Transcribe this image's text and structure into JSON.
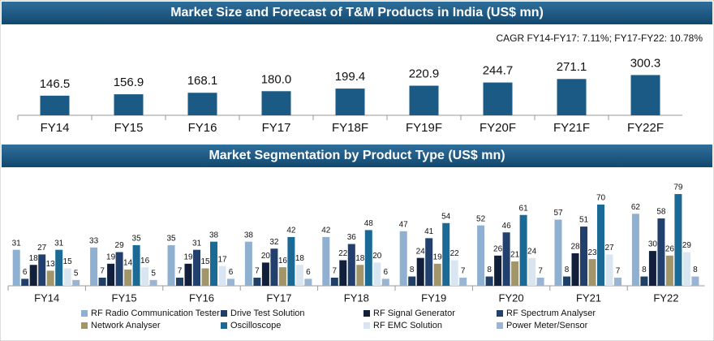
{
  "chart_data": [
    {
      "type": "bar",
      "title": "Market Size and Forecast of T&M Products in India (US$ mn)",
      "subtitle": "CAGR FY14-FY17: 7.11%; FY17-FY22: 10.78%",
      "categories": [
        "FY14",
        "FY15",
        "FY16",
        "FY17",
        "FY18F",
        "FY19F",
        "FY20F",
        "FY21F",
        "FY22F"
      ],
      "values": [
        146.5,
        156.9,
        168.1,
        180.0,
        199.4,
        220.9,
        244.7,
        271.1,
        300.3
      ],
      "value_labels": [
        "146.5",
        "156.9",
        "168.1",
        "180.0",
        "199.4",
        "220.9",
        "244.7",
        "271.1",
        "300.3"
      ],
      "color": "#1a5a85"
    },
    {
      "type": "grouped_bar",
      "title": "Market Segmentation by Product Type (US$ mn)",
      "categories": [
        "FY14",
        "FY15",
        "FY16",
        "FY17",
        "FY18",
        "FY19",
        "FY20",
        "FY21",
        "FY22"
      ],
      "series": [
        {
          "name": "RF Radio Communication Tester",
          "color": "#8fb0d0",
          "values": [
            31,
            33,
            35,
            38,
            42,
            47,
            52,
            57,
            62
          ]
        },
        {
          "name": "Drive Test Solution",
          "color": "#1f3f66",
          "values": [
            6,
            7,
            7,
            7,
            7,
            8,
            8,
            8,
            8
          ]
        },
        {
          "name": "RF Signal Generator",
          "color": "#111f3a",
          "values": [
            18,
            19,
            19,
            20,
            22,
            24,
            26,
            28,
            30
          ]
        },
        {
          "name": "RF Spectrum Analyser",
          "color": "#22406e",
          "values": [
            27,
            29,
            31,
            32,
            36,
            41,
            46,
            51,
            58
          ]
        },
        {
          "name": "Network Analyser",
          "color": "#a3956a",
          "values": [
            13,
            14,
            15,
            16,
            18,
            19,
            21,
            23,
            26
          ]
        },
        {
          "name": "Oscilloscope",
          "color": "#1b6a96",
          "values": [
            31,
            35,
            38,
            42,
            48,
            54,
            61,
            70,
            79
          ]
        },
        {
          "name": "RF EMC Solution",
          "color": "#d9e6f2",
          "values": [
            15,
            16,
            17,
            18,
            20,
            22,
            24,
            27,
            29
          ]
        },
        {
          "name": "Power Meter/Sensor",
          "color": "#9ab5d3",
          "values": [
            5,
            5,
            6,
            6,
            6,
            7,
            7,
            7,
            8
          ]
        }
      ]
    }
  ]
}
